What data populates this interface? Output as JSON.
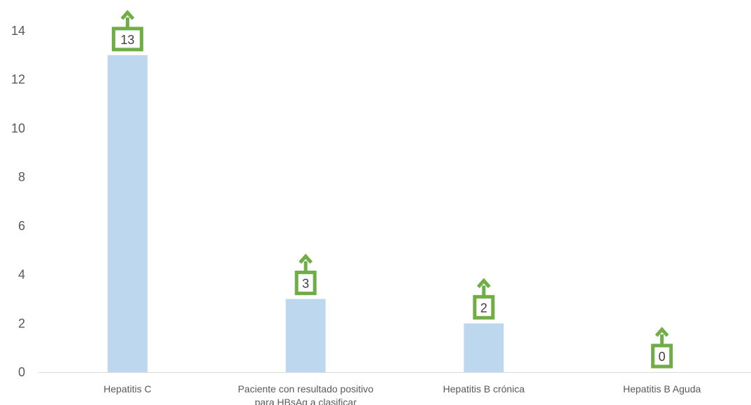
{
  "chart_data": {
    "type": "bar",
    "title": "",
    "xlabel": "",
    "ylabel": "",
    "categories": [
      "Hepatitis C",
      "Paciente con resultado positivo para HBsAg a clasificar",
      "Hepatitis B crónica",
      "Hepatitis B Aguda"
    ],
    "category_lines": [
      [
        "Hepatitis C"
      ],
      [
        "Paciente con resultado positivo",
        "para HBsAg a clasificar"
      ],
      [
        "Hepatitis B crónica"
      ],
      [
        "Hepatitis B Aguda"
      ]
    ],
    "values": [
      13,
      3,
      2,
      0
    ],
    "data_labels": [
      "13",
      "3",
      "2",
      "0"
    ],
    "ylim": [
      0,
      14
    ],
    "yticks": [
      0,
      2,
      4,
      6,
      8,
      10,
      12,
      14
    ],
    "ytick_labels": [
      "0",
      "2",
      "4",
      "6",
      "8",
      "10",
      "12",
      "14"
    ],
    "grid": false,
    "legend": "none",
    "colors": {
      "bar": "#bdd7ee",
      "label_callout": "#70ad47",
      "axis": "#d9d9d9",
      "tick_text": "#595959",
      "label_text": "#404040"
    }
  }
}
